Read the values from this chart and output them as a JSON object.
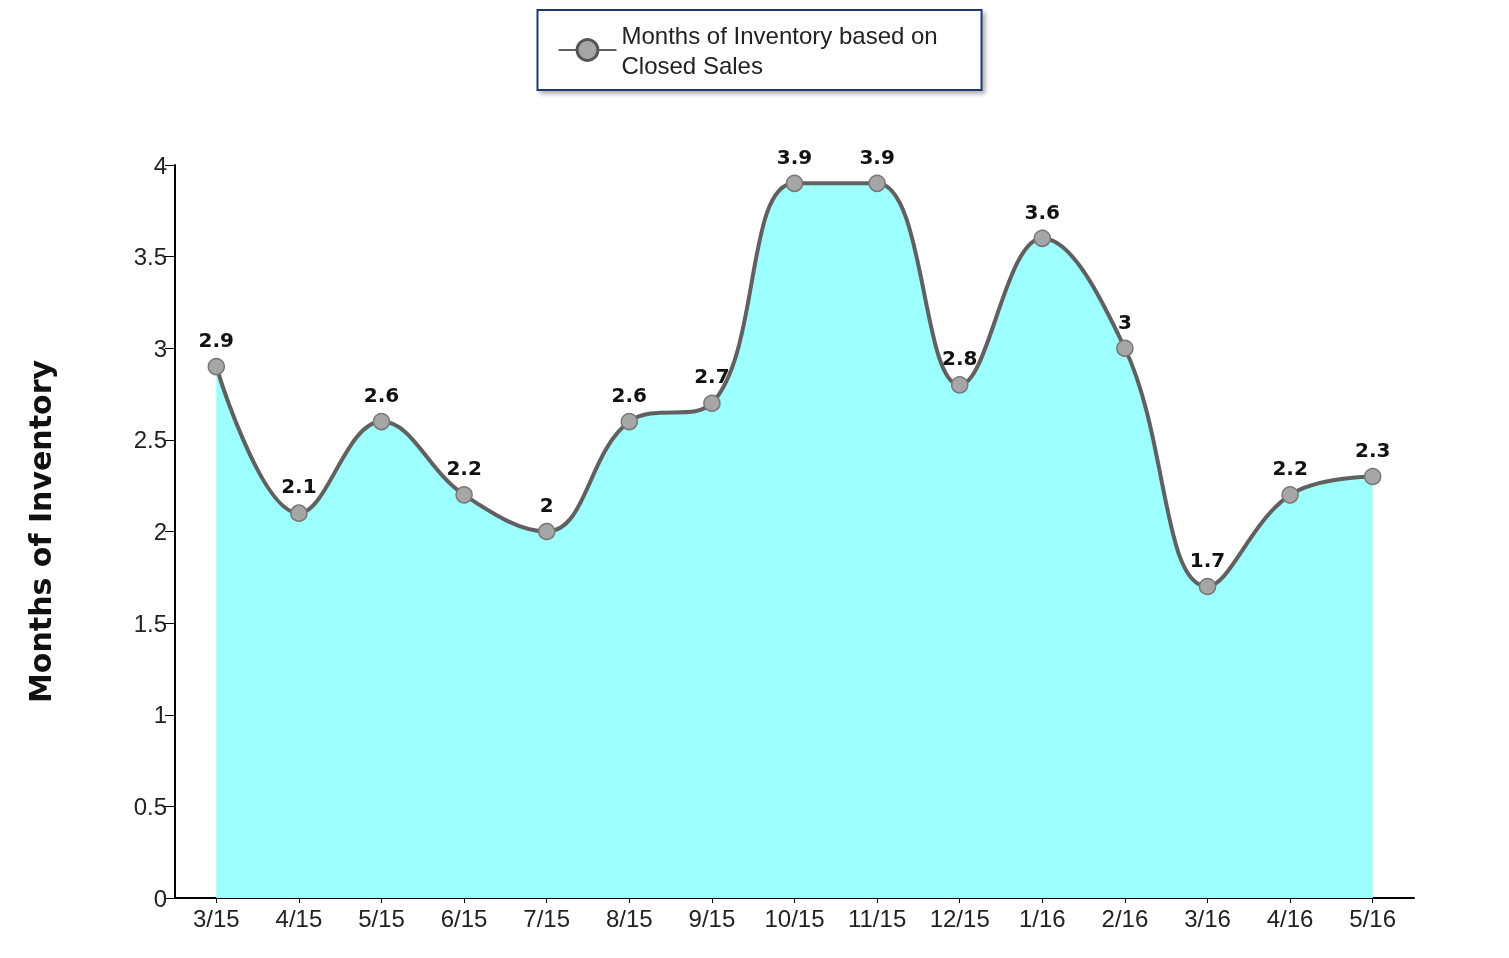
{
  "chart_data": {
    "type": "area",
    "ylabel": "Months of Inventory",
    "categories": [
      "3/15",
      "4/15",
      "5/15",
      "6/15",
      "7/15",
      "8/15",
      "9/15",
      "10/15",
      "11/15",
      "12/15",
      "1/16",
      "2/16",
      "3/16",
      "4/16",
      "5/16"
    ],
    "series": [
      {
        "name": "Months of Inventory based on Closed Sales",
        "color": "#9effff",
        "values": [
          2.9,
          2.1,
          2.6,
          2.2,
          2,
          2.6,
          2.7,
          3.9,
          3.9,
          2.8,
          3.6,
          3,
          1.7,
          2.2,
          2.3
        ]
      }
    ],
    "ylim": [
      0,
      4
    ],
    "yticks": [
      0,
      0.5,
      1,
      1.5,
      2,
      2.5,
      3,
      3.5,
      4
    ],
    "grid": false,
    "legend": "top",
    "marker": "circle",
    "data_labels": true
  }
}
